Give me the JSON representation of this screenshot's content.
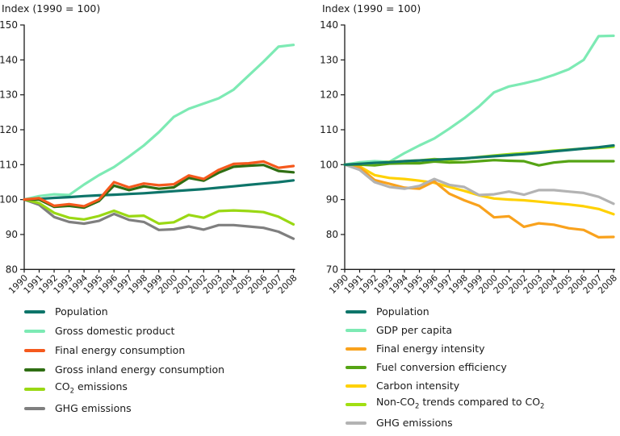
{
  "chart_data": [
    {
      "type": "line",
      "title": "Index (1990 = 100)",
      "ylim": [
        80,
        150
      ],
      "yticks": [
        80,
        90,
        100,
        110,
        120,
        130,
        140,
        150
      ],
      "grid": false,
      "legend_position": "below",
      "years": [
        1990,
        1991,
        1992,
        1993,
        1994,
        1995,
        1996,
        1997,
        1998,
        1999,
        2000,
        2001,
        2002,
        2003,
        2004,
        2005,
        2006,
        2007,
        2008
      ],
      "series": [
        {
          "name": "Population",
          "color": "#0e756a",
          "label_parts": [
            {
              "t": "Population"
            }
          ],
          "values": [
            100,
            100.2,
            100.5,
            100.7,
            101,
            101.2,
            101.4,
            101.6,
            101.8,
            102.1,
            102.4,
            102.7,
            103,
            103.4,
            103.8,
            104.2,
            104.6,
            105,
            105.5
          ]
        },
        {
          "name": "Gross domestic product",
          "color": "#7deab4",
          "label_parts": [
            {
              "t": "Gross domestic product"
            }
          ],
          "values": [
            100,
            101,
            101.5,
            101.3,
            104.3,
            107,
            109.3,
            112.3,
            115.5,
            119.3,
            123.7,
            126,
            127.5,
            129,
            131.5,
            135.5,
            139.5,
            143.8,
            144.3
          ]
        },
        {
          "name": "Final energy consumption",
          "color": "#f5591d",
          "label_parts": [
            {
              "t": "Final energy consumption"
            }
          ],
          "values": [
            100,
            100.4,
            98.2,
            98.7,
            98.1,
            100,
            105,
            103.5,
            104.6,
            104.1,
            104.4,
            106.9,
            105.9,
            108.5,
            110.2,
            110.4,
            110.9,
            109.1,
            109.6
          ]
        },
        {
          "name": "Gross inland energy consumption",
          "color": "#2f6e13",
          "label_parts": [
            {
              "t": "Gross inland energy consumption"
            }
          ],
          "values": [
            100,
            100,
            97.9,
            98.2,
            97.7,
            99.6,
            104,
            102.7,
            103.8,
            103.1,
            103.5,
            106.2,
            105.4,
            107.7,
            109.4,
            109.7,
            109.9,
            108.2,
            107.8
          ]
        },
        {
          "name": "CO2 emissions",
          "color": "#9ad814",
          "label_parts": [
            {
              "t": "CO"
            },
            {
              "t": "2",
              "sub": true
            },
            {
              "t": " emissions"
            }
          ],
          "values": [
            100,
            99,
            96.2,
            94.8,
            94.3,
            95.3,
            96.8,
            95.2,
            95.4,
            93.1,
            93.5,
            95.6,
            94.8,
            96.7,
            96.9,
            96.7,
            96.4,
            95.1,
            92.9
          ]
        },
        {
          "name": "GHG emissions",
          "color": "#7f7f7f",
          "label_parts": [
            {
              "t": "GHG emissions"
            }
          ],
          "values": [
            100,
            98.5,
            95,
            93.6,
            93.1,
            93.9,
            95.9,
            94.2,
            93.6,
            91.3,
            91.5,
            92.3,
            91.4,
            92.7,
            92.7,
            92.3,
            91.9,
            90.8,
            88.8
          ]
        }
      ]
    },
    {
      "type": "line",
      "title": "Index (1990 = 100)",
      "ylim": [
        70,
        140
      ],
      "yticks": [
        70,
        80,
        90,
        100,
        110,
        120,
        130,
        140
      ],
      "grid": false,
      "legend_position": "below",
      "years": [
        1990,
        1991,
        1992,
        1993,
        1994,
        1995,
        1996,
        1997,
        1998,
        1999,
        2000,
        2001,
        2002,
        2003,
        2004,
        2005,
        2006,
        2007,
        2008
      ],
      "series": [
        {
          "name": "Population",
          "color": "#0e756a",
          "label_parts": [
            {
              "t": "Population"
            }
          ],
          "values": [
            100,
            100.2,
            100.5,
            100.7,
            101,
            101.2,
            101.4,
            101.6,
            101.8,
            102.1,
            102.4,
            102.7,
            103,
            103.4,
            103.8,
            104.2,
            104.6,
            105,
            105.5
          ]
        },
        {
          "name": "GDP per capita",
          "color": "#7deab4",
          "label_parts": [
            {
              "t": "GDP per capita"
            }
          ],
          "values": [
            100,
            100.7,
            101,
            100.8,
            103.3,
            105.5,
            107.5,
            110.3,
            113.3,
            116.7,
            120.7,
            122.4,
            123.3,
            124.3,
            125.7,
            127.3,
            130,
            136.8,
            136.9
          ]
        },
        {
          "name": "Final energy intensity",
          "color": "#f9a21d",
          "label_parts": [
            {
              "t": "Final energy intensity"
            }
          ],
          "values": [
            100,
            99.2,
            95.6,
            94.5,
            93.4,
            93.1,
            95.2,
            91.7,
            89.8,
            88.2,
            84.9,
            85.2,
            82.2,
            83.2,
            82.8,
            81.8,
            81.3,
            79.2,
            79.3
          ]
        },
        {
          "name": "Fuel conversion efficiency",
          "color": "#55a414",
          "label_parts": [
            {
              "t": "Fuel conversion efficiency"
            }
          ],
          "values": [
            100,
            100,
            99.8,
            100.3,
            100.4,
            100.4,
            100.9,
            100.6,
            100.7,
            101,
            101.3,
            101.1,
            101,
            99.8,
            100.6,
            101,
            101,
            101,
            101
          ]
        },
        {
          "name": "Carbon intensity",
          "color": "#ffd103",
          "label_parts": [
            {
              "t": "Carbon intensity"
            }
          ],
          "values": [
            100,
            99.5,
            97,
            96.2,
            95.9,
            95.4,
            94.8,
            93.6,
            92.5,
            91.2,
            90.3,
            90,
            89.8,
            89.4,
            89,
            88.6,
            88.1,
            87.3,
            85.8
          ]
        },
        {
          "name": "Non-CO2 trends compared to CO2",
          "color": "#a1df12",
          "label_parts": [
            {
              "t": "Non-CO"
            },
            {
              "t": "2",
              "sub": true
            },
            {
              "t": " trends compared to CO"
            },
            {
              "t": "2",
              "sub": true
            }
          ],
          "values": [
            100,
            100.2,
            100.4,
            100.8,
            101,
            101.2,
            101.6,
            101.3,
            101.7,
            102.2,
            102.6,
            103,
            103.3,
            103.6,
            104,
            104.3,
            104.6,
            104.8,
            105.1
          ]
        },
        {
          "name": "GHG emissions",
          "color": "#b3b3b3",
          "label_parts": [
            {
              "t": "GHG emissions"
            }
          ],
          "values": [
            100,
            98.5,
            95,
            93.6,
            93.1,
            93.9,
            95.9,
            94.2,
            93.6,
            91.3,
            91.5,
            92.3,
            91.4,
            92.7,
            92.7,
            92.3,
            91.9,
            90.8,
            88.8
          ]
        }
      ]
    }
  ]
}
